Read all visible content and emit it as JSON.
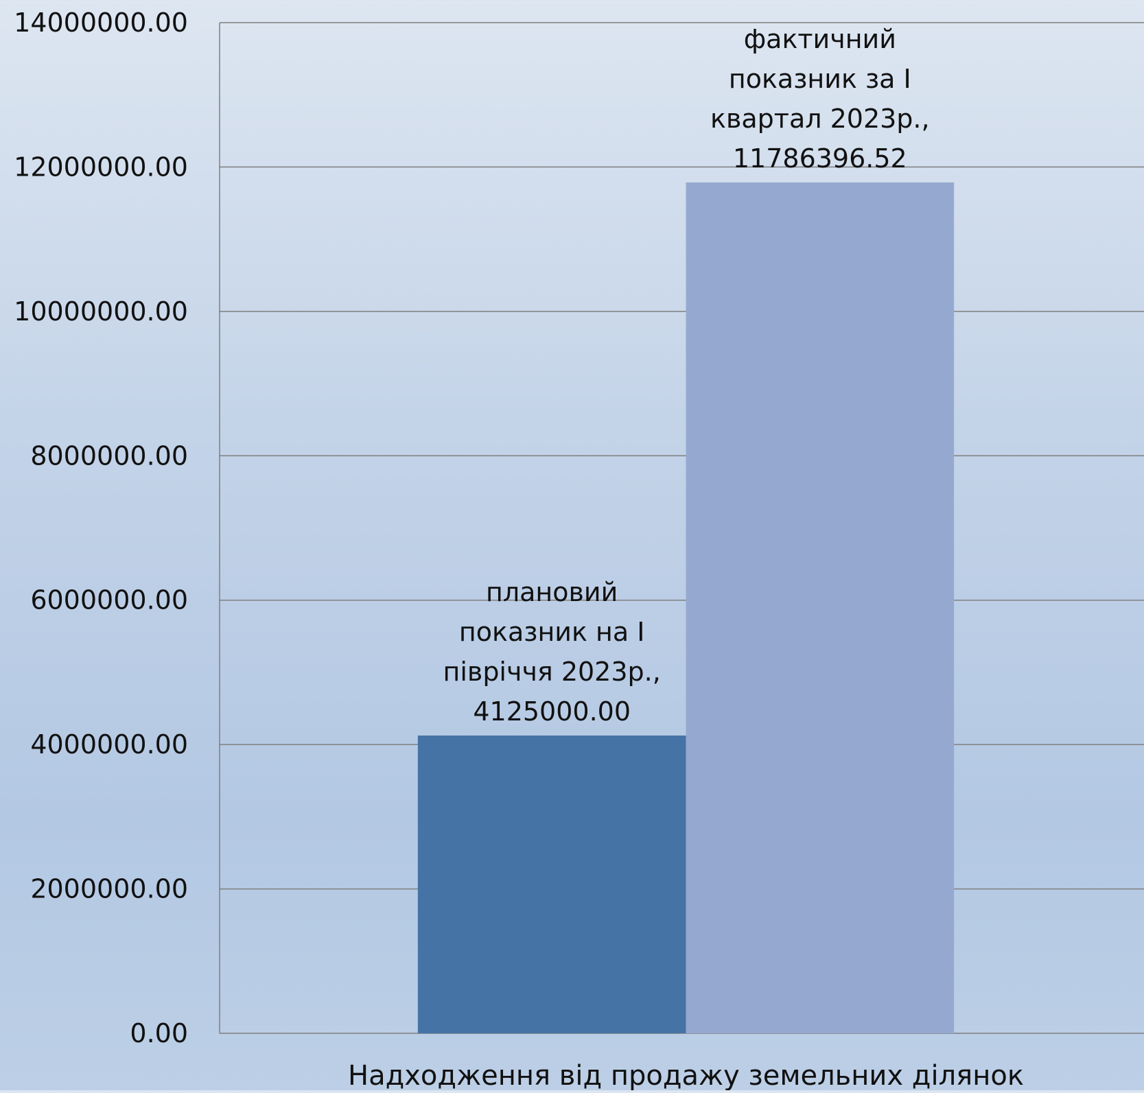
{
  "chart_data": {
    "type": "bar",
    "title": "",
    "xlabel": "",
    "ylabel": "",
    "categories": [
      "Надходження від продажу земельних ділянок"
    ],
    "series": [
      {
        "name": "плановий показник на І півріччя 2023р.",
        "values": [
          4125000.0
        ],
        "value_label": "4125000.00",
        "color": "#4673a6"
      },
      {
        "name": "фактичний показник за І квартал 2023р.",
        "values": [
          11786396.52
        ],
        "value_label": "11786396.52",
        "color": "#95a9d0"
      }
    ],
    "data_labels": [
      [
        "плановий",
        "показник на І",
        "півріччя 2023р.,",
        "4125000.00"
      ],
      [
        "фактичний",
        "показник за І",
        "квартал 2023р.,",
        "11786396.52"
      ]
    ],
    "ylim": [
      0,
      14000000
    ],
    "yticks": [
      {
        "value": 0,
        "label": "0.00"
      },
      {
        "value": 2000000,
        "label": "2000000.00"
      },
      {
        "value": 4000000,
        "label": "4000000.00"
      },
      {
        "value": 6000000,
        "label": "6000000.00"
      },
      {
        "value": 8000000,
        "label": "8000000.00"
      },
      {
        "value": 10000000,
        "label": "10000000.00"
      },
      {
        "value": 12000000,
        "label": "12000000.00"
      },
      {
        "value": 14000000,
        "label": "14000000.00"
      }
    ],
    "grid": true,
    "gridline_color": "#7f7f7f",
    "legend": "none"
  }
}
